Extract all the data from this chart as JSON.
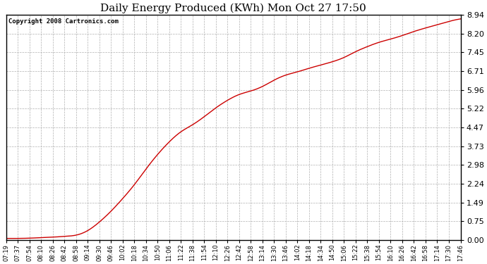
{
  "title": "Daily Energy Produced (KWh) Mon Oct 27 17:50",
  "copyright_text": "Copyright 2008 Cartronics.com",
  "line_color": "#cc0000",
  "bg_color": "#ffffff",
  "plot_bg_color": "#ffffff",
  "grid_color": "#b0b0b0",
  "grid_style": "--",
  "yticks": [
    0.0,
    0.75,
    1.49,
    2.24,
    2.98,
    3.73,
    4.47,
    5.22,
    5.96,
    6.71,
    7.45,
    8.2,
    8.94
  ],
  "ylim": [
    0.0,
    8.94
  ],
  "xtick_labels": [
    "07:19",
    "07:37",
    "07:54",
    "08:10",
    "08:26",
    "08:42",
    "08:58",
    "09:14",
    "09:30",
    "09:46",
    "10:02",
    "10:18",
    "10:34",
    "10:50",
    "11:06",
    "11:22",
    "11:38",
    "11:54",
    "12:10",
    "12:26",
    "12:42",
    "12:58",
    "13:14",
    "13:30",
    "13:46",
    "14:02",
    "14:18",
    "14:34",
    "14:50",
    "15:06",
    "15:22",
    "15:38",
    "15:54",
    "16:10",
    "16:26",
    "16:42",
    "16:58",
    "17:14",
    "17:30",
    "17:46"
  ],
  "curve_x": [
    0,
    1,
    2,
    3,
    4,
    5,
    6,
    7,
    8,
    9,
    10,
    11,
    12,
    13,
    14,
    15,
    16,
    17,
    18,
    19,
    20,
    21,
    22,
    23,
    24,
    25,
    26,
    27,
    28,
    29,
    30,
    31,
    32,
    33,
    34,
    35,
    36,
    37,
    38,
    39
  ],
  "curve_y": [
    0.07,
    0.07,
    0.08,
    0.1,
    0.12,
    0.15,
    0.2,
    0.38,
    0.72,
    1.15,
    1.65,
    2.2,
    2.82,
    3.4,
    3.9,
    4.3,
    4.58,
    4.9,
    5.25,
    5.55,
    5.78,
    5.92,
    6.1,
    6.35,
    6.55,
    6.68,
    6.82,
    6.95,
    7.08,
    7.25,
    7.48,
    7.68,
    7.85,
    7.98,
    8.12,
    8.28,
    8.42,
    8.55,
    8.68,
    8.78
  ]
}
